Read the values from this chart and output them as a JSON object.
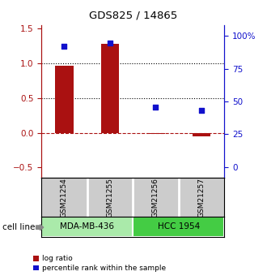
{
  "title": "GDS825 / 14865",
  "samples": [
    "GSM21254",
    "GSM21255",
    "GSM21256",
    "GSM21257"
  ],
  "log_ratios": [
    0.97,
    1.28,
    -0.02,
    -0.05
  ],
  "percentile_ranks": [
    92,
    95,
    46,
    43
  ],
  "cell_lines": [
    {
      "label": "MDA-MB-436",
      "samples": [
        0,
        1
      ],
      "color": "#aaeaaa"
    },
    {
      "label": "HCC 1954",
      "samples": [
        2,
        3
      ],
      "color": "#44cc44"
    }
  ],
  "bar_color": "#AA1111",
  "dot_color": "#1111CC",
  "ylim_left": [
    -0.65,
    1.55
  ],
  "ylim_right": [
    -8.33,
    108.33
  ],
  "yticks_left": [
    -0.5,
    0.0,
    0.5,
    1.0,
    1.5
  ],
  "yticks_right": [
    0,
    25,
    50,
    75,
    100
  ],
  "hlines_dotted": [
    0.5,
    1.0
  ],
  "hline_dashed": 0.0,
  "background_color": "#ffffff",
  "legend_red_label": "log ratio",
  "legend_blue_label": "percentile rank within the sample",
  "cell_line_label": "cell line",
  "bar_width": 0.4
}
